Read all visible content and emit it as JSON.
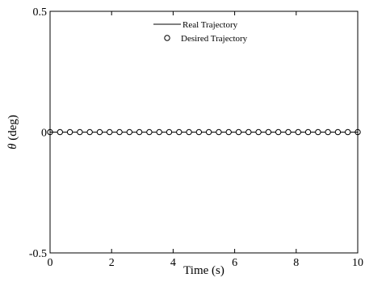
{
  "chart_data": {
    "type": "line",
    "title": "",
    "xlabel": "Time  (s)",
    "ylabel_symbol": "θ",
    "ylabel_unit": " (deg)",
    "xlim": [
      0,
      10
    ],
    "ylim": [
      -0.5,
      0.5
    ],
    "x_ticks": [
      0,
      2,
      4,
      6,
      8,
      10
    ],
    "x_tick_labels": [
      "0",
      "2",
      "4",
      "6",
      "8",
      "10"
    ],
    "y_ticks": [
      -0.5,
      0,
      0.5
    ],
    "y_tick_labels": [
      "-0.5",
      "0",
      "0.5"
    ],
    "grid": false,
    "legend_position": "top-center",
    "series": [
      {
        "name": "Real Trajectory",
        "style": "solid-line",
        "color": "#000000",
        "x": [
          0,
          10
        ],
        "y": [
          0,
          0
        ]
      },
      {
        "name": "Desired Trajectory",
        "style": "circle-markers",
        "color": "#000000",
        "x": [
          0,
          0.3226,
          0.6452,
          0.9677,
          1.2903,
          1.6129,
          1.9355,
          2.2581,
          2.5806,
          2.9032,
          3.2258,
          3.5484,
          3.871,
          4.1935,
          4.5161,
          4.8387,
          5.1613,
          5.4839,
          5.8065,
          6.129,
          6.4516,
          6.7742,
          7.0968,
          7.4194,
          7.7419,
          8.0645,
          8.3871,
          8.7097,
          9.0323,
          9.3548,
          9.6774,
          10
        ],
        "y": [
          0,
          0,
          0,
          0,
          0,
          0,
          0,
          0,
          0,
          0,
          0,
          0,
          0,
          0,
          0,
          0,
          0,
          0,
          0,
          0,
          0,
          0,
          0,
          0,
          0,
          0,
          0,
          0,
          0,
          0,
          0,
          0
        ]
      }
    ]
  }
}
